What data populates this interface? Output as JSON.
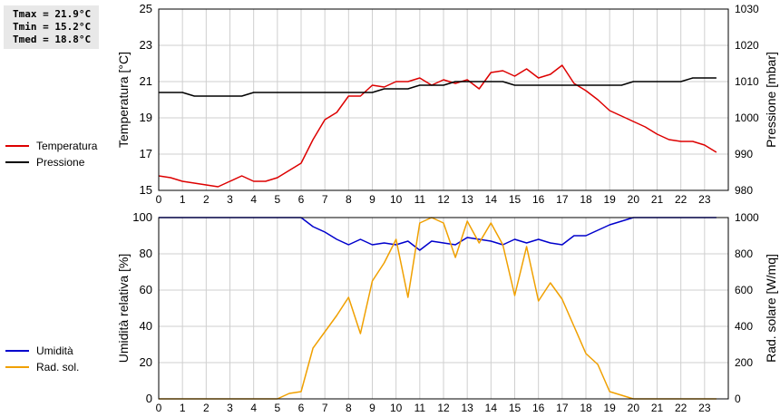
{
  "stats": {
    "tmax": "Tmax = 21.9°C",
    "tmin": "Tmin = 15.2°C",
    "tmed": "Tmed = 18.8°C"
  },
  "legend_top": [
    {
      "label": "Temperatura",
      "color": "#dd0000"
    },
    {
      "label": "Pressione",
      "color": "#000000"
    }
  ],
  "legend_bottom": [
    {
      "label": "Umidità",
      "color": "#0000cc"
    },
    {
      "label": "Rad. sol.",
      "color": "#f0a000"
    }
  ],
  "chart_data": [
    {
      "type": "line",
      "ylabel": "Temperatura [°C]",
      "y2label": "Pressione [mbar]",
      "xlim": [
        0,
        24
      ],
      "ylim": [
        15,
        25
      ],
      "y2lim": [
        980,
        1030
      ],
      "x_ticks": [
        "0",
        "1",
        "2",
        "3",
        "4",
        "5",
        "6",
        "7",
        "8",
        "9",
        "10",
        "11",
        "12",
        "13",
        "14",
        "15",
        "16",
        "17",
        "18",
        "19",
        "20",
        "21",
        "22",
        "23"
      ],
      "y_ticks": [
        15,
        17,
        19,
        21,
        23,
        25
      ],
      "y2_ticks": [
        980,
        990,
        1000,
        1010,
        1020,
        1030
      ],
      "grid": true,
      "series": [
        {
          "name": "Temperatura",
          "axis": "left",
          "color": "#dd0000",
          "x": [
            0,
            0.5,
            1,
            1.5,
            2,
            2.5,
            3,
            3.5,
            4,
            4.5,
            5,
            5.5,
            6,
            6.5,
            7,
            7.5,
            8,
            8.5,
            9,
            9.5,
            10,
            10.5,
            11,
            11.5,
            12,
            12.5,
            13,
            13.5,
            14,
            14.5,
            15,
            15.5,
            16,
            16.5,
            17,
            17.5,
            18,
            18.5,
            19,
            19.5,
            20,
            20.5,
            21,
            21.5,
            22,
            22.5,
            23,
            23.5
          ],
          "y": [
            15.8,
            15.7,
            15.5,
            15.4,
            15.3,
            15.2,
            15.5,
            15.8,
            15.5,
            15.5,
            15.7,
            16.1,
            16.5,
            17.8,
            18.9,
            19.3,
            20.2,
            20.2,
            20.8,
            20.7,
            21.0,
            21.0,
            21.2,
            20.8,
            21.1,
            20.9,
            21.1,
            20.6,
            21.5,
            21.6,
            21.3,
            21.7,
            21.2,
            21.4,
            21.9,
            20.9,
            20.5,
            20.0,
            19.4,
            19.1,
            18.8,
            18.5,
            18.1,
            17.8,
            17.7,
            17.7,
            17.5,
            17.1
          ]
        },
        {
          "name": "Pressione",
          "axis": "right",
          "color": "#000000",
          "x": [
            0,
            0.5,
            1,
            1.5,
            2,
            2.5,
            3,
            3.5,
            4,
            4.5,
            5,
            5.5,
            6,
            6.5,
            7,
            7.5,
            8,
            8.5,
            9,
            9.5,
            10,
            10.5,
            11,
            11.5,
            12,
            12.5,
            13,
            13.5,
            14,
            14.5,
            15,
            15.5,
            16,
            16.5,
            17,
            17.5,
            18,
            18.5,
            19,
            19.5,
            20,
            20.5,
            21,
            21.5,
            22,
            22.5,
            23,
            23.5
          ],
          "y": [
            1007,
            1007,
            1007,
            1006,
            1006,
            1006,
            1006,
            1006,
            1007,
            1007,
            1007,
            1007,
            1007,
            1007,
            1007,
            1007,
            1007,
            1007,
            1007,
            1008,
            1008,
            1008,
            1009,
            1009,
            1009,
            1010,
            1010,
            1010,
            1010,
            1010,
            1009,
            1009,
            1009,
            1009,
            1009,
            1009,
            1009,
            1009,
            1009,
            1009,
            1010,
            1010,
            1010,
            1010,
            1010,
            1011,
            1011,
            1011
          ]
        }
      ]
    },
    {
      "type": "line",
      "ylabel": "Umidità relativa [%]",
      "y2label": "Rad. solare [W/mq]",
      "xlim": [
        0,
        24
      ],
      "ylim": [
        0,
        100
      ],
      "y2lim": [
        0,
        1000
      ],
      "x_ticks": [
        "0",
        "1",
        "2",
        "3",
        "4",
        "5",
        "6",
        "7",
        "8",
        "9",
        "10",
        "11",
        "12",
        "13",
        "14",
        "15",
        "16",
        "17",
        "18",
        "19",
        "20",
        "21",
        "22",
        "23"
      ],
      "y_ticks": [
        0,
        20,
        40,
        60,
        80,
        100
      ],
      "y2_ticks": [
        0,
        200,
        400,
        600,
        800,
        1000
      ],
      "grid": true,
      "series": [
        {
          "name": "Umidità",
          "axis": "left",
          "color": "#0000cc",
          "x": [
            0,
            0.5,
            1,
            1.5,
            2,
            2.5,
            3,
            3.5,
            4,
            4.5,
            5,
            5.5,
            6,
            6.5,
            7,
            7.5,
            8,
            8.5,
            9,
            9.5,
            10,
            10.5,
            11,
            11.5,
            12,
            12.5,
            13,
            13.5,
            14,
            14.5,
            15,
            15.5,
            16,
            16.5,
            17,
            17.5,
            18,
            18.5,
            19,
            19.5,
            20,
            20.5,
            21,
            21.5,
            22,
            22.5,
            23,
            23.5
          ],
          "y": [
            100,
            100,
            100,
            100,
            100,
            100,
            100,
            100,
            100,
            100,
            100,
            100,
            100,
            95,
            92,
            88,
            85,
            88,
            85,
            86,
            85,
            87,
            82,
            87,
            86,
            85,
            89,
            88,
            87,
            85,
            88,
            86,
            88,
            86,
            85,
            90,
            90,
            93,
            96,
            98,
            100,
            100,
            100,
            100,
            100,
            100,
            100,
            100
          ]
        },
        {
          "name": "Rad. sol.",
          "axis": "right",
          "color": "#f0a000",
          "x": [
            0,
            0.5,
            1,
            1.5,
            2,
            2.5,
            3,
            3.5,
            4,
            4.5,
            5,
            5.5,
            6,
            6.5,
            7,
            7.5,
            8,
            8.5,
            9,
            9.5,
            10,
            10.5,
            11,
            11.5,
            12,
            12.5,
            13,
            13.5,
            14,
            14.5,
            15,
            15.5,
            16,
            16.5,
            17,
            17.5,
            18,
            18.5,
            19,
            19.5,
            20,
            20.5,
            21,
            21.5,
            22,
            22.5,
            23,
            23.5
          ],
          "y": [
            0,
            0,
            0,
            0,
            0,
            0,
            0,
            0,
            0,
            0,
            0,
            30,
            40,
            280,
            370,
            460,
            560,
            360,
            650,
            750,
            880,
            560,
            970,
            1000,
            970,
            780,
            980,
            860,
            970,
            850,
            570,
            840,
            540,
            640,
            550,
            400,
            250,
            190,
            40,
            20,
            0,
            0,
            0,
            0,
            0,
            0,
            0,
            0
          ]
        }
      ]
    }
  ]
}
